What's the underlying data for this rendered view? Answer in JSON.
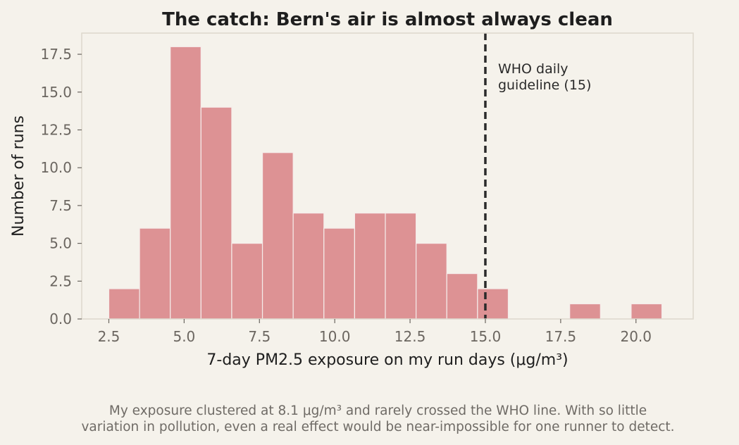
{
  "chart_data": {
    "type": "bar",
    "title": "The catch: Bern's air is almost always clean",
    "xlabel": "7-day PM2.5 exposure on my run days (μg/m³)",
    "ylabel": "Number of runs",
    "xlim": [
      1.6,
      21.9
    ],
    "ylim": [
      0,
      18.9
    ],
    "x_ticks": [
      "2.5",
      "5.0",
      "7.5",
      "10.0",
      "12.5",
      "15.0",
      "17.5",
      "20.0"
    ],
    "x_tick_values": [
      2.5,
      5.0,
      7.5,
      10.0,
      12.5,
      15.0,
      17.5,
      20.0
    ],
    "y_ticks": [
      "0.0",
      "2.5",
      "5.0",
      "7.5",
      "10.0",
      "12.5",
      "15.0",
      "17.5"
    ],
    "y_tick_values": [
      0.0,
      2.5,
      5.0,
      7.5,
      10.0,
      12.5,
      15.0,
      17.5
    ],
    "bins": [
      {
        "x0": 2.5,
        "x1": 3.52,
        "count": 2
      },
      {
        "x0": 3.52,
        "x1": 4.54,
        "count": 6
      },
      {
        "x0": 4.54,
        "x1": 5.56,
        "count": 18
      },
      {
        "x0": 5.56,
        "x1": 6.58,
        "count": 14
      },
      {
        "x0": 6.58,
        "x1": 7.6,
        "count": 5
      },
      {
        "x0": 7.6,
        "x1": 8.62,
        "count": 11
      },
      {
        "x0": 8.62,
        "x1": 9.64,
        "count": 7
      },
      {
        "x0": 9.64,
        "x1": 10.66,
        "count": 6
      },
      {
        "x0": 10.66,
        "x1": 11.68,
        "count": 7
      },
      {
        "x0": 11.68,
        "x1": 12.7,
        "count": 7
      },
      {
        "x0": 12.7,
        "x1": 13.72,
        "count": 5
      },
      {
        "x0": 13.72,
        "x1": 14.74,
        "count": 3
      },
      {
        "x0": 14.74,
        "x1": 15.76,
        "count": 2
      },
      {
        "x0": 15.76,
        "x1": 16.78,
        "count": 0
      },
      {
        "x0": 16.78,
        "x1": 17.8,
        "count": 0
      },
      {
        "x0": 17.8,
        "x1": 18.82,
        "count": 1
      },
      {
        "x0": 18.82,
        "x1": 19.84,
        "count": 0
      },
      {
        "x0": 19.84,
        "x1": 20.86,
        "count": 1
      }
    ],
    "reference_line": {
      "x": 15,
      "label_lines": [
        "WHO daily",
        "guideline (15)"
      ]
    },
    "grid": false,
    "colors": {
      "bar": "#dd9294",
      "bar_edge": "#f5ecea",
      "reference_line": "#2b2b2b",
      "background": "#f5f2eb",
      "frame": "#ddd7cc"
    }
  },
  "caption": {
    "line1": "My exposure clustered at 8.1 μg/m³ and rarely crossed the WHO line. With so little",
    "line2": "variation in pollution, even a real effect would be near-impossible for one runner to detect."
  }
}
